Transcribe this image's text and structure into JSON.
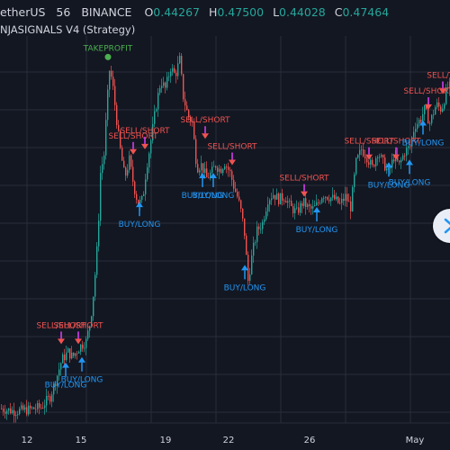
{
  "header": {
    "symbol": "etherUS",
    "timeframe": "56",
    "exchange": "BINANCE",
    "ohlc": [
      {
        "label": "O",
        "value": "0.44267"
      },
      {
        "label": "H",
        "value": "0.47500"
      },
      {
        "label": "L",
        "value": "0.44028"
      },
      {
        "label": "C",
        "value": "0.47464"
      }
    ],
    "strategy": "NJASIGNALS V4 (Strategy)"
  },
  "colors": {
    "background": "#131722",
    "grid": "#2a2e39",
    "up": "#26a69a",
    "down": "#ef5350",
    "buy": "#2196f3",
    "sell": "#ef5350",
    "takeprofit": "#4caf50",
    "marker": "#e040fb"
  },
  "chart_data": {
    "type": "candlestick",
    "x_tick_labels": [
      "12",
      "15",
      "19",
      "22",
      "26",
      "May"
    ],
    "price_path": [
      [
        0,
        0.3335
      ],
      [
        15,
        0.3325
      ],
      [
        30,
        0.333
      ],
      [
        45,
        0.334
      ],
      [
        55,
        0.338
      ],
      [
        62,
        0.345
      ],
      [
        68,
        0.352
      ],
      [
        75,
        0.355
      ],
      [
        80,
        0.353
      ],
      [
        88,
        0.357
      ],
      [
        95,
        0.359
      ],
      [
        100,
        0.367
      ],
      [
        104,
        0.38
      ],
      [
        108,
        0.398
      ],
      [
        111,
        0.423
      ],
      [
        115,
        0.43
      ],
      [
        118,
        0.448
      ],
      [
        121,
        0.462
      ],
      [
        124,
        0.458
      ],
      [
        128,
        0.446
      ],
      [
        132,
        0.434
      ],
      [
        138,
        0.421
      ],
      [
        143,
        0.428
      ],
      [
        148,
        0.418
      ],
      [
        153,
        0.411
      ],
      [
        158,
        0.413
      ],
      [
        162,
        0.425
      ],
      [
        166,
        0.433
      ],
      [
        172,
        0.447
      ],
      [
        178,
        0.458
      ],
      [
        183,
        0.455
      ],
      [
        189,
        0.463
      ],
      [
        194,
        0.46
      ],
      [
        199,
        0.466
      ],
      [
        203,
        0.452
      ],
      [
        208,
        0.445
      ],
      [
        213,
        0.442
      ],
      [
        218,
        0.425
      ],
      [
        223,
        0.426
      ],
      [
        229,
        0.421
      ],
      [
        234,
        0.423
      ],
      [
        239,
        0.426
      ],
      [
        244,
        0.424
      ],
      [
        249,
        0.427
      ],
      [
        255,
        0.423
      ],
      [
        259,
        0.418
      ],
      [
        264,
        0.413
      ],
      [
        268,
        0.407
      ],
      [
        271,
        0.4
      ],
      [
        275,
        0.382
      ],
      [
        280,
        0.393
      ],
      [
        285,
        0.401
      ],
      [
        291,
        0.404
      ],
      [
        297,
        0.413
      ],
      [
        303,
        0.415
      ],
      [
        309,
        0.413
      ],
      [
        316,
        0.414
      ],
      [
        322,
        0.41
      ],
      [
        329,
        0.408
      ],
      [
        336,
        0.412
      ],
      [
        341,
        0.41
      ],
      [
        346,
        0.409
      ],
      [
        352,
        0.411
      ],
      [
        358,
        0.415
      ],
      [
        364,
        0.414
      ],
      [
        371,
        0.413
      ],
      [
        377,
        0.411
      ],
      [
        383,
        0.414
      ],
      [
        389,
        0.41
      ],
      [
        395,
        0.427
      ],
      [
        401,
        0.432
      ],
      [
        407,
        0.429
      ],
      [
        413,
        0.425
      ],
      [
        419,
        0.431
      ],
      [
        425,
        0.427
      ],
      [
        431,
        0.423
      ],
      [
        437,
        0.429
      ],
      [
        443,
        0.426
      ],
      [
        449,
        0.431
      ],
      [
        455,
        0.433
      ],
      [
        460,
        0.441
      ],
      [
        466,
        0.443
      ],
      [
        471,
        0.447
      ],
      [
        477,
        0.442
      ],
      [
        484,
        0.449
      ],
      [
        490,
        0.447
      ],
      [
        496,
        0.455
      ],
      [
        500,
        0.456
      ]
    ],
    "signals": [
      {
        "type": "sell",
        "label": "SELL/SHORT",
        "x": 68,
        "y": 0.36
      },
      {
        "type": "sell",
        "label": "SELL/SHORT",
        "x": 87,
        "y": 0.36
      },
      {
        "type": "buy",
        "label": "BUY/LONG",
        "x": 73,
        "y": 0.349
      },
      {
        "type": "buy",
        "label": "BUY/LONG",
        "x": 91,
        "y": 0.351
      },
      {
        "type": "takeprofit",
        "label": "TAKEPROFIT",
        "x": 120,
        "y": 0.467
      },
      {
        "type": "sell",
        "label": "SELL/SHORT",
        "x": 148,
        "y": 0.432
      },
      {
        "type": "sell",
        "label": "SELL/SHORT",
        "x": 161,
        "y": 0.434
      },
      {
        "type": "buy",
        "label": "BUY/LONG",
        "x": 155,
        "y": 0.41
      },
      {
        "type": "sell",
        "label": "SELL/SHORT",
        "x": 228,
        "y": 0.438
      },
      {
        "type": "sell",
        "label": "SELL/SHORT",
        "x": 258,
        "y": 0.428
      },
      {
        "type": "buy",
        "label": "BUY/LONG",
        "x": 225,
        "y": 0.421
      },
      {
        "type": "buy",
        "label": "BUY/LONG",
        "x": 237,
        "y": 0.421
      },
      {
        "type": "buy",
        "label": "BUY/LONG",
        "x": 272,
        "y": 0.386
      },
      {
        "type": "sell",
        "label": "SELL/SHORT",
        "x": 338,
        "y": 0.416
      },
      {
        "type": "buy",
        "label": "BUY/LONG",
        "x": 352,
        "y": 0.408
      },
      {
        "type": "sell",
        "label": "SELL/SHORT",
        "x": 410,
        "y": 0.43
      },
      {
        "type": "sell",
        "label": "SELL/SHORT",
        "x": 440,
        "y": 0.43
      },
      {
        "type": "buy",
        "label": "BUY/LONG",
        "x": 432,
        "y": 0.425
      },
      {
        "type": "buy",
        "label": "BUY/LONG",
        "x": 455,
        "y": 0.426
      },
      {
        "type": "sell",
        "label": "SELL/SHORT",
        "x": 476,
        "y": 0.449
      },
      {
        "type": "sell",
        "label": "SELL/TA",
        "x": 492,
        "y": 0.455
      },
      {
        "type": "buy",
        "label": "BUY/LONG",
        "x": 470,
        "y": 0.441
      }
    ]
  }
}
